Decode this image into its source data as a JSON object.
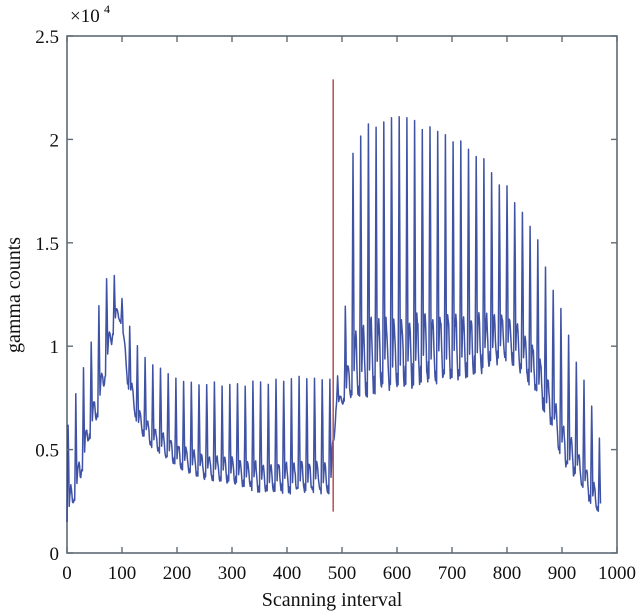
{
  "chart_data": {
    "type": "line",
    "title": "",
    "xlabel": "Scanning interval",
    "ylabel": "gamma counts",
    "y_multiplier": "×10^4",
    "y_multiplier_base": "×10",
    "y_multiplier_exp": "4",
    "xlim": [
      0,
      1000
    ],
    "ylim": [
      0,
      2.5
    ],
    "x_ticks": [
      0,
      100,
      200,
      300,
      400,
      500,
      600,
      700,
      800,
      900,
      1000
    ],
    "y_ticks": [
      0,
      0.5,
      1,
      1.5,
      2,
      2.5
    ],
    "y_tick_labels": [
      "0",
      "0.5",
      "1",
      "1.5",
      "2",
      "2.5"
    ],
    "grid": false,
    "legend": null,
    "series": [
      {
        "name": "gamma counts",
        "color": "#2a3f9a",
        "description": "Oscillating signal (period ~14 samples); values in units of 10^4",
        "x_range": [
          0,
          970
        ],
        "oscillation_period": 14,
        "upper_envelope": {
          "x": [
            0,
            20,
            40,
            60,
            80,
            90,
            100,
            110,
            130,
            160,
            200,
            250,
            300,
            350,
            400,
            450,
            480,
            490,
            500,
            520,
            540,
            600,
            640,
            700,
            750,
            800,
            850,
            880,
            900,
            930,
            950,
            965,
            970
          ],
          "y": [
            0.63,
            0.83,
            1.0,
            1.24,
            1.43,
            1.3,
            1.24,
            1.15,
            1.0,
            0.92,
            0.86,
            0.84,
            0.84,
            0.85,
            0.86,
            0.88,
            0.86,
            0.85,
            0.9,
            1.97,
            2.15,
            2.16,
            2.14,
            2.05,
            1.96,
            1.8,
            1.6,
            1.35,
            1.2,
            0.93,
            0.78,
            0.62,
            0.55
          ]
        },
        "lower_envelope": {
          "x": [
            0,
            20,
            40,
            60,
            80,
            90,
            100,
            110,
            130,
            160,
            200,
            250,
            300,
            350,
            400,
            450,
            480,
            490,
            500,
            520,
            540,
            600,
            640,
            700,
            750,
            800,
            850,
            880,
            900,
            930,
            950,
            965,
            970
          ],
          "y": [
            0.15,
            0.3,
            0.55,
            0.7,
            1.0,
            1.15,
            1.1,
            0.82,
            0.6,
            0.5,
            0.42,
            0.36,
            0.34,
            0.3,
            0.3,
            0.3,
            0.3,
            0.72,
            0.72,
            0.75,
            0.78,
            0.8,
            0.83,
            0.85,
            0.88,
            0.95,
            0.8,
            0.62,
            0.45,
            0.35,
            0.25,
            0.2,
            0.2
          ]
        }
      }
    ],
    "annotations": [
      {
        "type": "vertical_line",
        "x": 484,
        "y_from": 0.2,
        "y_to": 2.29,
        "color": "#b85a5a"
      }
    ]
  }
}
